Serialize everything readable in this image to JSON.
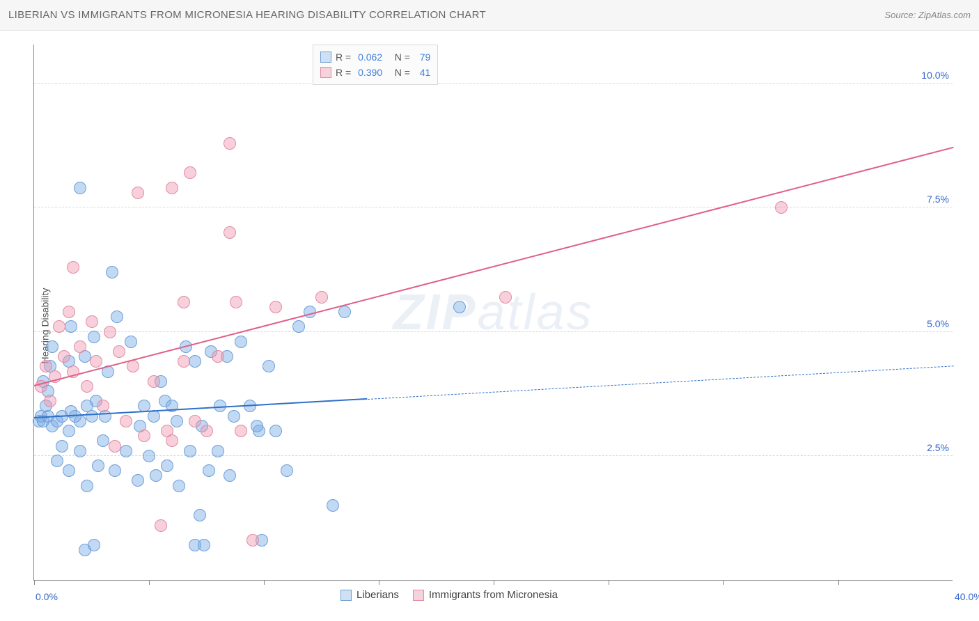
{
  "title": "LIBERIAN VS IMMIGRANTS FROM MICRONESIA HEARING DISABILITY CORRELATION CHART",
  "source": "Source: ZipAtlas.com",
  "ylabel": "Hearing Disability",
  "watermark_a": "ZIP",
  "watermark_b": "atlas",
  "chart": {
    "type": "scatter",
    "xlim": [
      0,
      40
    ],
    "ylim": [
      0,
      10.8
    ],
    "xticks": [
      0,
      40
    ],
    "xlabels": [
      "0.0%",
      "40.0%"
    ],
    "xtick_marks": [
      0,
      5,
      10,
      15,
      20,
      25,
      30,
      35
    ],
    "yticks": [
      2.5,
      5.0,
      7.5,
      10.0
    ],
    "ylabels": [
      "2.5%",
      "5.0%",
      "7.5%",
      "10.0%"
    ],
    "grid_color": "#d8d8d8",
    "axis_color": "#888888",
    "background": "#ffffff",
    "marker_radius": 9,
    "label_fontsize": 14,
    "title_fontsize": 15,
    "series": [
      {
        "name": "Liberians",
        "fill": "rgba(120,170,230,0.45)",
        "stroke": "#6d9ed6",
        "legend_fill": "#cfe0f4",
        "legend_stroke": "#6d9ed6",
        "R": "0.062",
        "N": "79",
        "trend": {
          "x1": 0,
          "y1": 3.25,
          "x2": 40,
          "y2": 4.3,
          "solid_until": 14.5,
          "color": "#2f6fc7",
          "width": 2.5
        },
        "points": [
          [
            0.2,
            3.2
          ],
          [
            0.3,
            3.3
          ],
          [
            0.4,
            3.2
          ],
          [
            0.6,
            3.3
          ],
          [
            0.5,
            3.5
          ],
          [
            0.8,
            3.1
          ],
          [
            1.0,
            3.2
          ],
          [
            1.2,
            3.3
          ],
          [
            0.6,
            3.8
          ],
          [
            0.4,
            4.0
          ],
          [
            0.7,
            4.3
          ],
          [
            0.8,
            4.7
          ],
          [
            1.5,
            3.0
          ],
          [
            1.6,
            3.4
          ],
          [
            1.8,
            3.3
          ],
          [
            2.0,
            3.2
          ],
          [
            2.3,
            3.5
          ],
          [
            2.5,
            3.3
          ],
          [
            2.7,
            3.6
          ],
          [
            3.1,
            3.3
          ],
          [
            1.5,
            4.4
          ],
          [
            1.6,
            5.1
          ],
          [
            2.2,
            4.5
          ],
          [
            2.6,
            4.9
          ],
          [
            2.0,
            7.9
          ],
          [
            3.4,
            6.2
          ],
          [
            3.6,
            5.3
          ],
          [
            4.2,
            4.8
          ],
          [
            4.6,
            3.1
          ],
          [
            4.8,
            3.5
          ],
          [
            5.2,
            3.3
          ],
          [
            5.5,
            4.0
          ],
          [
            5.7,
            3.6
          ],
          [
            6.0,
            3.5
          ],
          [
            6.2,
            3.2
          ],
          [
            6.6,
            4.7
          ],
          [
            7.0,
            4.4
          ],
          [
            7.3,
            3.1
          ],
          [
            7.7,
            4.6
          ],
          [
            8.1,
            3.5
          ],
          [
            8.4,
            4.5
          ],
          [
            8.7,
            3.3
          ],
          [
            9.0,
            4.8
          ],
          [
            9.4,
            3.5
          ],
          [
            9.8,
            3.0
          ],
          [
            10.2,
            4.3
          ],
          [
            11.5,
            5.1
          ],
          [
            12.0,
            5.4
          ],
          [
            1.0,
            2.4
          ],
          [
            1.5,
            2.2
          ],
          [
            2.0,
            2.6
          ],
          [
            2.3,
            1.9
          ],
          [
            2.8,
            2.3
          ],
          [
            3.0,
            2.8
          ],
          [
            3.5,
            2.2
          ],
          [
            4.0,
            2.6
          ],
          [
            4.5,
            2.0
          ],
          [
            5.0,
            2.5
          ],
          [
            5.3,
            2.1
          ],
          [
            5.8,
            2.3
          ],
          [
            6.3,
            1.9
          ],
          [
            6.8,
            2.6
          ],
          [
            7.2,
            1.3
          ],
          [
            7.6,
            2.2
          ],
          [
            8.0,
            2.6
          ],
          [
            8.5,
            2.1
          ],
          [
            2.2,
            0.6
          ],
          [
            2.6,
            0.7
          ],
          [
            7.0,
            0.7
          ],
          [
            7.4,
            0.7
          ],
          [
            9.7,
            3.1
          ],
          [
            9.9,
            0.8
          ],
          [
            10.5,
            3.0
          ],
          [
            11.0,
            2.2
          ],
          [
            1.2,
            2.7
          ],
          [
            3.2,
            4.2
          ],
          [
            13.5,
            5.4
          ],
          [
            13.0,
            1.5
          ],
          [
            18.5,
            5.5
          ]
        ]
      },
      {
        "name": "Immigrants from Micronesia",
        "fill": "rgba(240,150,175,0.45)",
        "stroke": "#e18aa3",
        "legend_fill": "#f6d2dc",
        "legend_stroke": "#e18aa3",
        "R": "0.390",
        "N": "41",
        "trend": {
          "x1": 0,
          "y1": 3.9,
          "x2": 40,
          "y2": 8.7,
          "solid_until": 40,
          "color": "#e05f88",
          "width": 2.5
        },
        "points": [
          [
            0.3,
            3.9
          ],
          [
            0.5,
            4.3
          ],
          [
            0.7,
            3.6
          ],
          [
            0.9,
            4.1
          ],
          [
            1.1,
            5.1
          ],
          [
            1.3,
            4.5
          ],
          [
            1.5,
            5.4
          ],
          [
            1.7,
            4.2
          ],
          [
            2.0,
            4.7
          ],
          [
            2.3,
            3.9
          ],
          [
            2.5,
            5.2
          ],
          [
            2.7,
            4.4
          ],
          [
            3.0,
            3.5
          ],
          [
            3.3,
            5.0
          ],
          [
            3.7,
            4.6
          ],
          [
            4.0,
            3.2
          ],
          [
            4.3,
            4.3
          ],
          [
            4.8,
            2.9
          ],
          [
            5.2,
            4.0
          ],
          [
            5.8,
            3.0
          ],
          [
            1.7,
            6.3
          ],
          [
            6.0,
            2.8
          ],
          [
            6.5,
            4.4
          ],
          [
            7.0,
            3.2
          ],
          [
            7.5,
            3.0
          ],
          [
            8.0,
            4.5
          ],
          [
            8.5,
            7.0
          ],
          [
            9.0,
            3.0
          ],
          [
            9.5,
            0.8
          ],
          [
            4.5,
            7.8
          ],
          [
            6.0,
            7.9
          ],
          [
            6.8,
            8.2
          ],
          [
            8.5,
            8.8
          ],
          [
            6.5,
            5.6
          ],
          [
            8.8,
            5.6
          ],
          [
            10.5,
            5.5
          ],
          [
            12.5,
            5.7
          ],
          [
            20.5,
            5.7
          ],
          [
            32.5,
            7.5
          ],
          [
            3.5,
            2.7
          ],
          [
            5.5,
            1.1
          ]
        ]
      }
    ]
  },
  "legend_top": {
    "r_label": "R =",
    "n_label": "N ="
  },
  "bottom_legend": [
    "Liberians",
    "Immigrants from Micronesia"
  ]
}
